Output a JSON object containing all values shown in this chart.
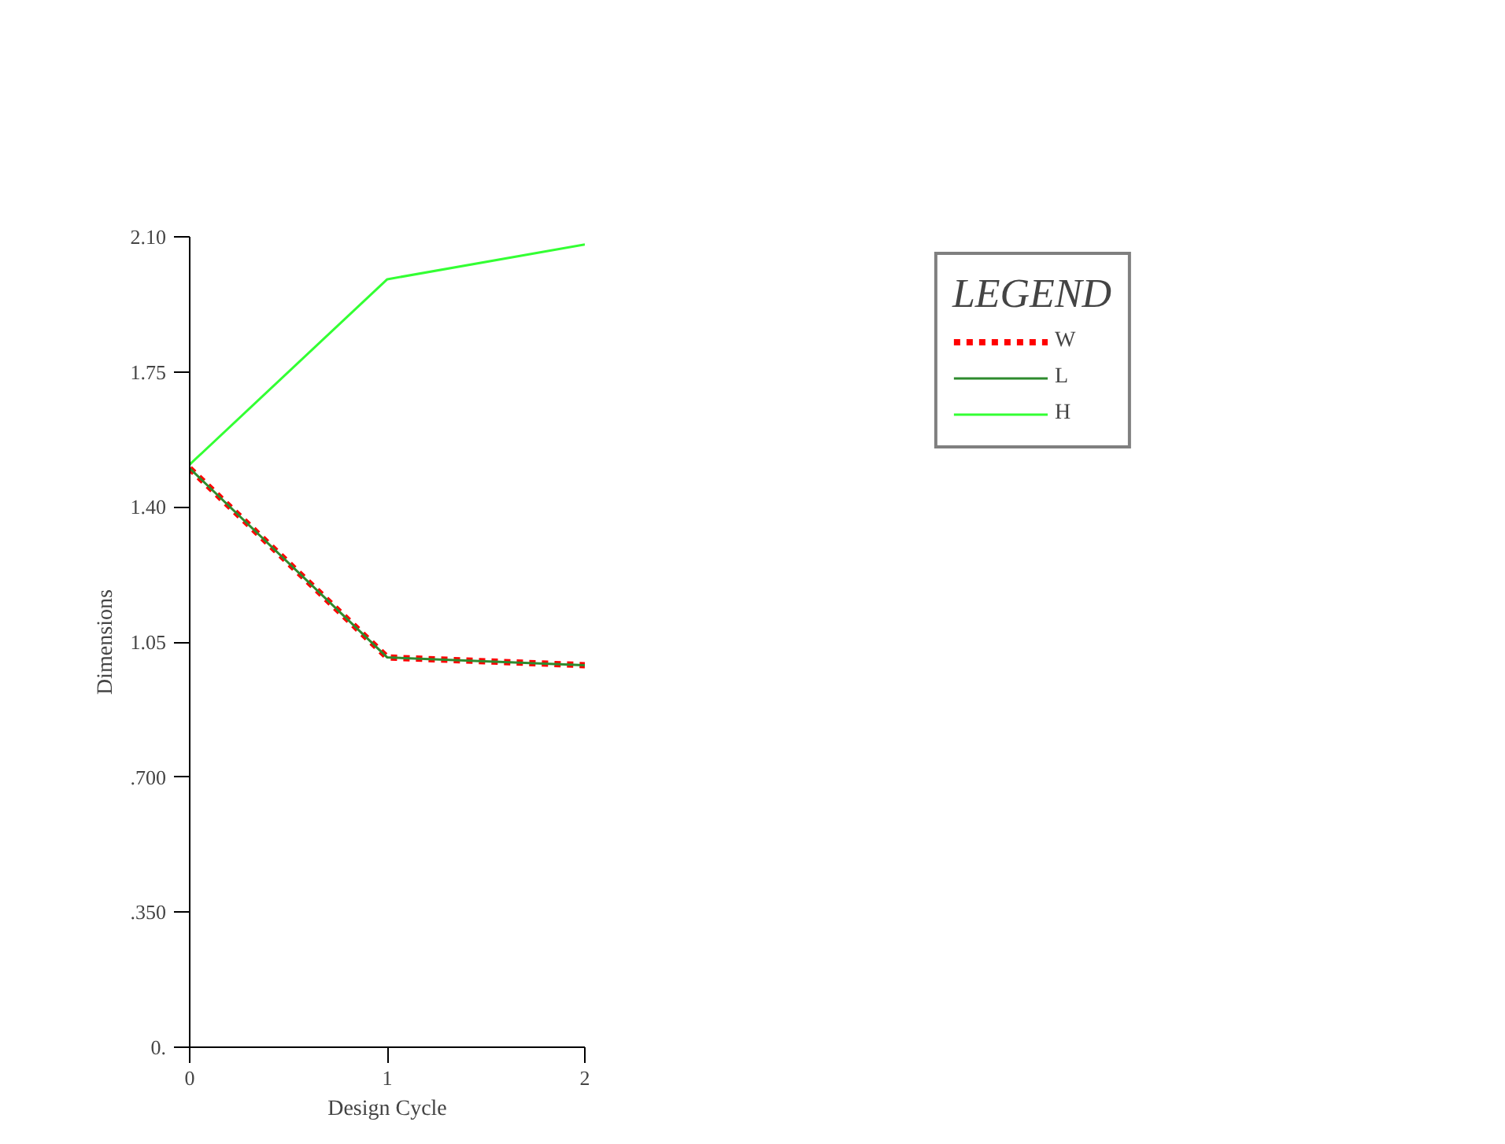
{
  "chart_data": {
    "type": "line",
    "xlabel": "Design Cycle",
    "ylabel": "Dimensions",
    "legend_title": "LEGEND",
    "legend": "top right",
    "grid": false,
    "x": [
      0,
      1,
      2
    ],
    "xlim": [
      0,
      2
    ],
    "xticks": [
      0,
      1,
      2
    ],
    "ylim": [
      0,
      2.1
    ],
    "yticks": [
      {
        "value": 0,
        "label": "0."
      },
      {
        "value": 0.35,
        "label": ".350"
      },
      {
        "value": 0.7,
        "label": ".700"
      },
      {
        "value": 1.05,
        "label": "1.05"
      },
      {
        "value": 1.4,
        "label": "1.40"
      },
      {
        "value": 1.75,
        "label": "1.75"
      },
      {
        "value": 2.1,
        "label": "2.10"
      }
    ],
    "series": [
      {
        "name": "W",
        "color": "#ff0000",
        "line_style": "dotted",
        "values": [
          1.5,
          1.01,
          0.99
        ]
      },
      {
        "name": "L",
        "color": "#2e8b2e",
        "values": [
          1.5,
          1.01,
          0.99
        ]
      },
      {
        "name": "H",
        "color": "#33ff33",
        "values": [
          1.51,
          1.99,
          2.08
        ]
      }
    ]
  }
}
